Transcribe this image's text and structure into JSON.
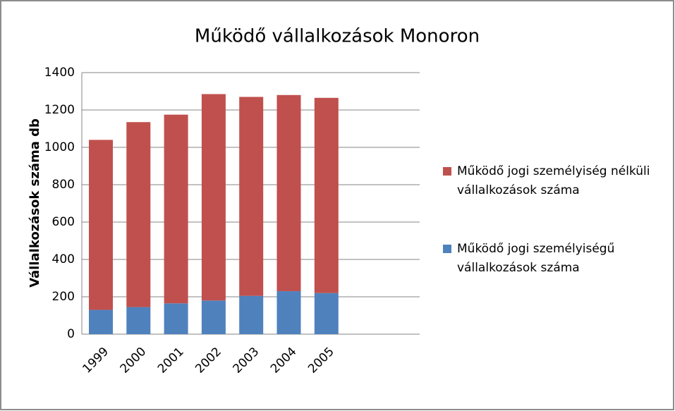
{
  "chart_data": {
    "type": "stacked_bar",
    "title": "Működő vállalkozások Monoron",
    "y_label": "Vállalkozások száma db",
    "categories": [
      "1999",
      "2000",
      "2001",
      "2002",
      "2003",
      "2004",
      "2005"
    ],
    "series": [
      {
        "name": "Működő jogi személyiségű vállalkozások száma",
        "color": "#4f81bd",
        "values": [
          130,
          145,
          165,
          180,
          205,
          230,
          220
        ]
      },
      {
        "name": "Működő jogi személyiség nélküli vállalkozások száma",
        "color": "#c0504d",
        "values": [
          910,
          990,
          1010,
          1105,
          1065,
          1050,
          1045
        ]
      }
    ],
    "ylim": [
      0,
      1400
    ],
    "yticks": [
      0,
      200,
      400,
      600,
      800,
      1000,
      1200,
      1400
    ],
    "grid": true,
    "legend": "right"
  }
}
